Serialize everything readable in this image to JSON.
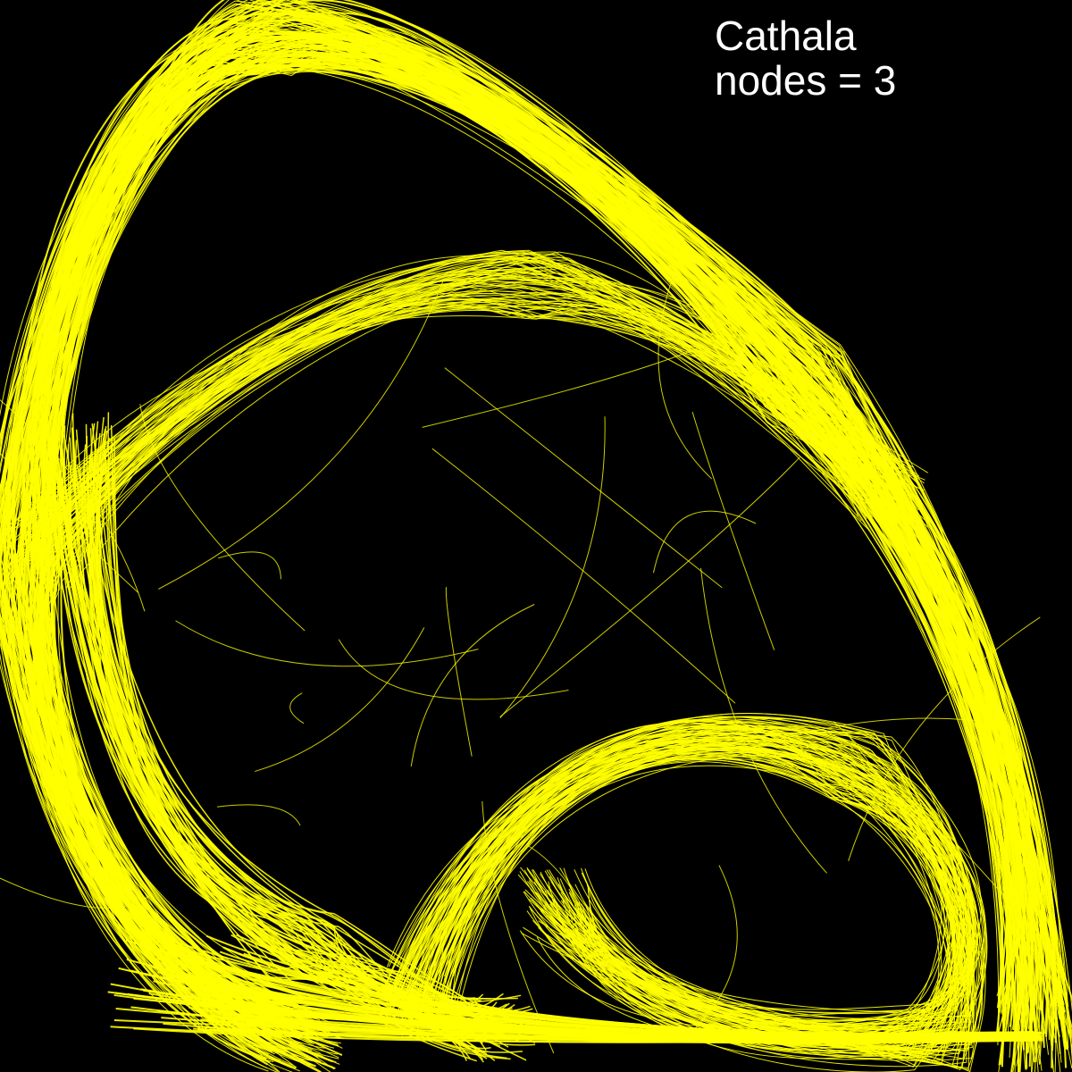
{
  "title": "Cathala",
  "subtitle": "nodes = 3"
}
